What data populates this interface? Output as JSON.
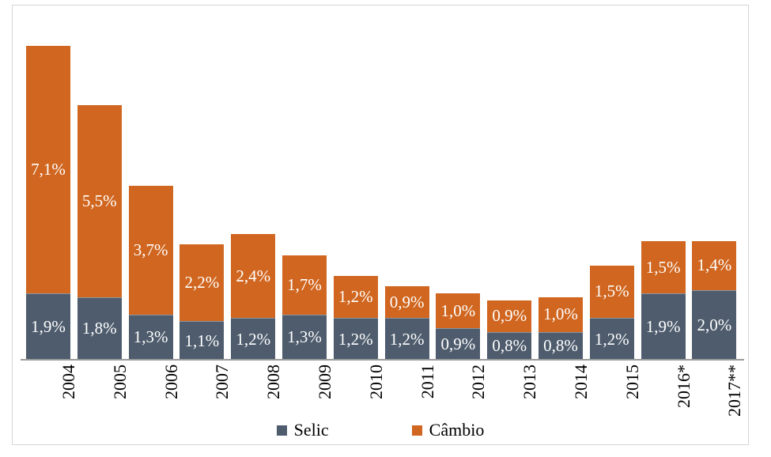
{
  "chart_data": {
    "type": "bar",
    "stacked": true,
    "title": "",
    "xlabel": "",
    "ylabel": "",
    "grid": false,
    "legend_position": "bottom",
    "ylim": [
      0,
      10
    ],
    "categories": [
      "2004",
      "2005",
      "2006",
      "2007",
      "2008",
      "2009",
      "2010",
      "2011",
      "2012",
      "2013",
      "2014",
      "2015",
      "2016*",
      "2017**"
    ],
    "series": [
      {
        "name": "Selic",
        "color": "#4e5c6d",
        "values": [
          1.9,
          1.8,
          1.3,
          1.1,
          1.2,
          1.3,
          1.2,
          1.2,
          0.9,
          0.8,
          0.8,
          1.2,
          1.9,
          2.0
        ],
        "labels": [
          "1,9%",
          "1,8%",
          "1,3%",
          "1,1%",
          "1,2%",
          "1,3%",
          "1,2%",
          "1,2%",
          "0,9%",
          "0,8%",
          "0,8%",
          "1,2%",
          "1,9%",
          "2,0%"
        ]
      },
      {
        "name": "Câmbio",
        "color": "#d0661f",
        "values": [
          7.1,
          5.5,
          3.7,
          2.2,
          2.4,
          1.7,
          1.2,
          0.9,
          1.0,
          0.9,
          1.0,
          1.5,
          1.5,
          1.4
        ],
        "labels": [
          "7,1%",
          "5,5%",
          "3,7%",
          "2,2%",
          "2,4%",
          "1,7%",
          "1,2%",
          "0,9%",
          "1,0%",
          "0,9%",
          "1,0%",
          "1,5%",
          "1,5%",
          "1,4%"
        ]
      }
    ],
    "value_label_color": "#ffffff",
    "axis_line_color": "#9b9b9b",
    "frame_border_color": "#d6d6d6"
  }
}
